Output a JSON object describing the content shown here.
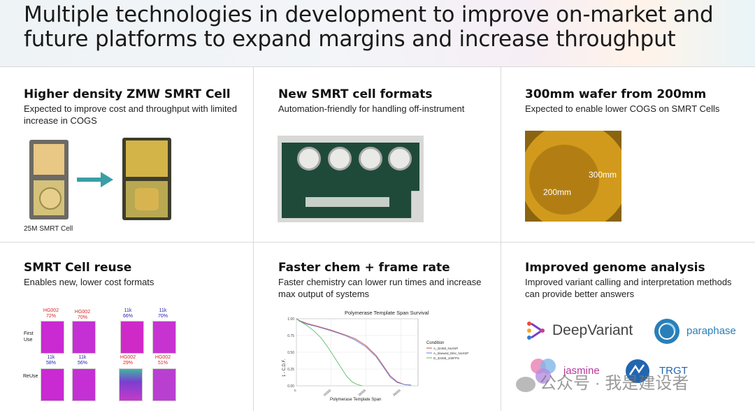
{
  "slide": {
    "title": "Multiple technologies in development to improve on-market and future platforms to expand margins and increase throughput"
  },
  "panels": [
    {
      "title": "Higher density ZMW SMRT Cell",
      "desc": "Expected to improve cost and throughput with limited increase in COGS",
      "caption": "25M SMRT Cell"
    },
    {
      "title": "New SMRT cell formats",
      "desc": "Automation-friendly for handling off-instrument"
    },
    {
      "title": "300mm wafer from 200mm",
      "desc": "Expected to enable lower COGS on SMRT Cells",
      "label_300": "300mm",
      "label_200": "200mm"
    },
    {
      "title": "SMRT Cell reuse",
      "desc": "Enables new, lower cost formats",
      "row_labels": [
        "First Use",
        "ReUse"
      ],
      "top_labels": [
        [
          "HG002",
          "72%"
        ],
        [
          "HG002",
          "70%"
        ],
        [
          "11k",
          "66%"
        ],
        [
          "11k",
          "70%"
        ]
      ],
      "bottom_labels": [
        [
          "11k",
          "58%"
        ],
        [
          "11k",
          "56%"
        ],
        [
          "HG002",
          "29%"
        ],
        [
          "HG002",
          "51%"
        ]
      ]
    },
    {
      "title": "Faster chem + frame rate",
      "desc": "Faster chemistry can lower run times and increase max output of systems"
    },
    {
      "title": "Improved genome analysis",
      "desc": "Improved variant calling and interpretation methods can provide better answers",
      "logos": [
        "DeepVariant",
        "paraphase",
        "jasmine",
        "TRGT"
      ]
    }
  ],
  "watermark": "公众号 · 我是建设者",
  "colors": {
    "green_line": "#5cbf6a",
    "red_line": "#c0504d",
    "blue_line": "#6a7fd6",
    "arrow": "#3a9ea5"
  },
  "chart_data": {
    "type": "line",
    "title": "Polymerase Template Span Survival",
    "xlabel": "Polymerase Template Span",
    "ylabel": "1 - C.D.F.",
    "x_ticks": [
      "0",
      "10000",
      "20000",
      "30000"
    ],
    "y_ticks": [
      "0.00",
      "0.25",
      "0.50",
      "0.75",
      "1.00"
    ],
    "legend_title": "Condition",
    "xlim": [
      0,
      35000
    ],
    "ylim": [
      0,
      1
    ],
    "series": [
      {
        "name": "A_32458_NoXSP",
        "color": "#c0504d",
        "x": [
          0,
          1000,
          3000,
          6000,
          10000,
          14000,
          17000,
          20000,
          23000,
          25000,
          27000,
          29000,
          31000,
          33000
        ],
        "y": [
          1.0,
          0.97,
          0.93,
          0.89,
          0.83,
          0.76,
          0.7,
          0.6,
          0.45,
          0.3,
          0.15,
          0.06,
          0.02,
          0.01
        ]
      },
      {
        "name": "A_Skewed_Dilsr_NoXSP",
        "color": "#6a7fd6",
        "x": [
          0,
          1000,
          3000,
          6000,
          10000,
          14000,
          17000,
          20000,
          23000,
          25000,
          27000,
          29000,
          31000,
          33000
        ],
        "y": [
          1.0,
          0.96,
          0.92,
          0.88,
          0.82,
          0.75,
          0.68,
          0.58,
          0.43,
          0.28,
          0.13,
          0.05,
          0.02,
          0.01
        ]
      },
      {
        "name": "D_32458_100FPS",
        "color": "#5cbf6a",
        "x": [
          0,
          1000,
          3000,
          5000,
          7000,
          9000,
          11000,
          13000,
          14500,
          16000,
          17500,
          19000
        ],
        "y": [
          1.0,
          0.96,
          0.9,
          0.82,
          0.72,
          0.58,
          0.42,
          0.26,
          0.14,
          0.06,
          0.02,
          0.0
        ]
      }
    ]
  }
}
